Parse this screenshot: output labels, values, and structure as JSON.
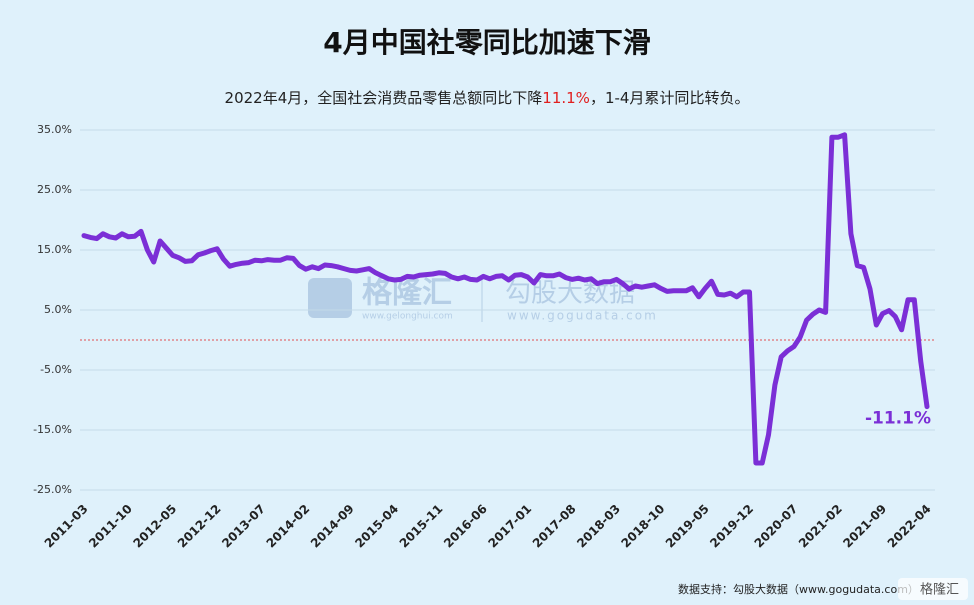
{
  "chart_data": {
    "type": "line",
    "title": "4月中国社零同比加速下滑",
    "subtitle": [
      "2022年4月，全国社会消费品零售总额同比下降",
      "11.1%",
      "，1-4月累计同比转负。"
    ],
    "categories": [
      "2011-03",
      null,
      null,
      null,
      null,
      null,
      null,
      "2011-10",
      null,
      null,
      null,
      null,
      null,
      null,
      "2012-05",
      null,
      null,
      null,
      null,
      null,
      null,
      "2012-12",
      null,
      null,
      null,
      null,
      null,
      null,
      "2013-07",
      null,
      null,
      null,
      null,
      null,
      null,
      "2014-02",
      null,
      null,
      null,
      null,
      null,
      null,
      "2014-09",
      null,
      null,
      null,
      null,
      null,
      null,
      "2015-04",
      null,
      null,
      null,
      null,
      null,
      null,
      "2015-11",
      null,
      null,
      null,
      null,
      null,
      null,
      "2016-06",
      null,
      null,
      null,
      null,
      null,
      null,
      "2017-01",
      null,
      null,
      null,
      null,
      null,
      null,
      "2017-08",
      null,
      null,
      null,
      null,
      null,
      null,
      "2018-03",
      null,
      null,
      null,
      null,
      null,
      null,
      "2018-10",
      null,
      null,
      null,
      null,
      null,
      null,
      "2019-05",
      null,
      null,
      null,
      null,
      null,
      null,
      "2019-12",
      null,
      null,
      null,
      null,
      null,
      null,
      "2020-07",
      null,
      null,
      null,
      null,
      null,
      null,
      "2021-02",
      null,
      null,
      null,
      null,
      null,
      null,
      "2021-09",
      null,
      null,
      null,
      null,
      null,
      null,
      "2022-04"
    ],
    "series": [
      {
        "name": "社会消费品零售总额同比",
        "color": "#7b2fd6",
        "values": [
          17.4,
          17.1,
          16.9,
          17.7,
          17.2,
          17.0,
          17.7,
          17.2,
          17.3,
          18.1,
          15.0,
          13.0,
          16.5,
          15.3,
          14.1,
          13.7,
          13.1,
          13.2,
          14.2,
          14.5,
          14.9,
          15.2,
          13.5,
          12.3,
          12.6,
          12.8,
          12.9,
          13.3,
          13.2,
          13.4,
          13.3,
          13.3,
          13.7,
          13.6,
          12.4,
          11.8,
          12.2,
          11.9,
          12.5,
          12.4,
          12.2,
          11.9,
          11.6,
          11.5,
          11.7,
          11.9,
          11.2,
          10.7,
          10.2,
          10.0,
          10.1,
          10.6,
          10.5,
          10.8,
          10.9,
          11.0,
          11.2,
          11.1,
          10.5,
          10.2,
          10.5,
          10.1,
          10.0,
          10.6,
          10.2,
          10.6,
          10.7,
          10.0,
          10.8,
          10.9,
          10.5,
          9.5,
          10.9,
          10.7,
          10.7,
          11.0,
          10.4,
          10.1,
          10.3,
          10.0,
          10.2,
          9.4,
          9.7,
          9.7,
          10.1,
          9.4,
          8.5,
          9.0,
          8.8,
          9.0,
          9.2,
          8.6,
          8.1,
          8.2,
          8.2,
          8.2,
          8.7,
          7.2,
          8.6,
          9.8,
          7.6,
          7.5,
          7.8,
          7.2,
          8.0,
          8.0,
          -20.5,
          -20.5,
          -15.8,
          -7.5,
          -2.8,
          -1.8,
          -1.1,
          0.5,
          3.3,
          4.3,
          5.0,
          4.6,
          33.8,
          33.8,
          34.2,
          17.7,
          12.4,
          12.1,
          8.5,
          2.5,
          4.4,
          4.9,
          3.9,
          1.7,
          6.7,
          6.7,
          -3.5,
          -11.1
        ]
      }
    ],
    "ylim": [
      -25,
      35
    ],
    "yticks": [
      {
        "value": -25,
        "label": "-25.0%"
      },
      {
        "value": -15,
        "label": "-15.0%"
      },
      {
        "value": -5,
        "label": "-5.0%"
      },
      {
        "value": 5,
        "label": "5.0%"
      },
      {
        "value": 15,
        "label": "15.0%"
      },
      {
        "value": 25,
        "label": "25.0%"
      },
      {
        "value": 35,
        "label": "35.0%"
      }
    ],
    "grid": true,
    "reference_line": {
      "value": 0,
      "color": "#e05050"
    },
    "annotation": "-11.1%",
    "watermarks": [
      "格隆汇",
      "www.gelonghui.com",
      "勾股大数据",
      "www.gogudata.com"
    ],
    "source": "数据支持：勾股大数据（www.gogudata.com）",
    "logo": "格隆汇"
  }
}
